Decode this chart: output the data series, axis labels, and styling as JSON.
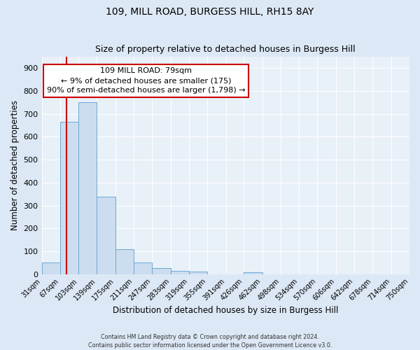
{
  "title": "109, MILL ROAD, BURGESS HILL, RH15 8AY",
  "subtitle": "Size of property relative to detached houses in Burgess Hill",
  "xlabel": "Distribution of detached houses by size in Burgess Hill",
  "ylabel": "Number of detached properties",
  "bar_color": "#ccddf0",
  "bar_edge_color": "#6aaad4",
  "background_color": "#e8f0f8",
  "grid_color": "#ffffff",
  "bin_labels": [
    "31sqm",
    "67sqm",
    "103sqm",
    "139sqm",
    "175sqm",
    "211sqm",
    "247sqm",
    "283sqm",
    "319sqm",
    "355sqm",
    "391sqm",
    "426sqm",
    "462sqm",
    "498sqm",
    "534sqm",
    "570sqm",
    "606sqm",
    "642sqm",
    "678sqm",
    "714sqm",
    "750sqm"
  ],
  "bin_edges": [
    31,
    67,
    103,
    139,
    175,
    211,
    247,
    283,
    319,
    355,
    391,
    426,
    462,
    498,
    534,
    570,
    606,
    642,
    678,
    714,
    750
  ],
  "bar_heights": [
    52,
    665,
    750,
    338,
    108,
    50,
    27,
    15,
    10,
    0,
    0,
    7,
    0,
    0,
    0,
    0,
    0,
    0,
    0,
    0
  ],
  "red_line_x": 79,
  "annotation_title": "109 MILL ROAD: 79sqm",
  "annotation_line1": "← 9% of detached houses are smaller (175)",
  "annotation_line2": "90% of semi-detached houses are larger (1,798) →",
  "annotation_box_color": "#ffffff",
  "annotation_border_color": "#cc0000",
  "red_line_color": "#cc0000",
  "ylim_max": 950,
  "yticks": [
    0,
    100,
    200,
    300,
    400,
    500,
    600,
    700,
    800,
    900
  ],
  "footer1": "Contains HM Land Registry data © Crown copyright and database right 2024.",
  "footer2": "Contains public sector information licensed under the Open Government Licence v3.0."
}
